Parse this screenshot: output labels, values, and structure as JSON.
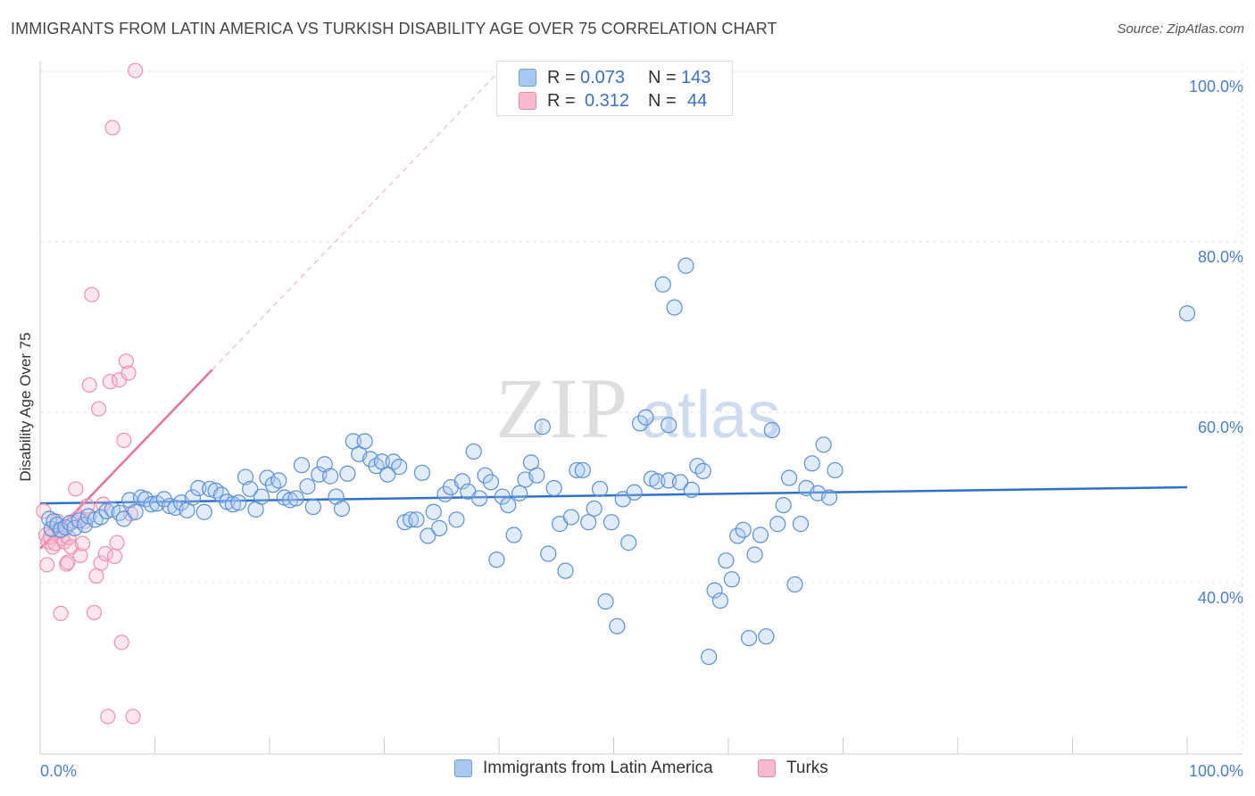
{
  "title": "IMMIGRANTS FROM LATIN AMERICA VS TURKISH DISABILITY AGE OVER 75 CORRELATION CHART",
  "source": "Source: ZipAtlas.com",
  "watermark": {
    "zip": "ZIP",
    "atlas": "atlas"
  },
  "stats": [
    {
      "r_label": "R =",
      "r_value": "0.073",
      "n_label": "N =",
      "n_value": "143",
      "color": "#a9c8f0",
      "border": "#6f9fe0"
    },
    {
      "r_label": "R =",
      "r_value": "0.312",
      "n_label": "N =",
      "n_value": "44",
      "color": "#f7b9cc",
      "border": "#e88aa8"
    }
  ],
  "legend": [
    {
      "label": "Immigrants from Latin America",
      "color": "#a9c8f0",
      "border": "#6f9fe0"
    },
    {
      "label": "Turks",
      "color": "#f7b9cc",
      "border": "#e88aa8"
    }
  ],
  "colors": {
    "blue": "#5b8fd9",
    "blue_line": "#2f6fc9",
    "pink": "#ef8fb0",
    "pink_line": "#e8729a",
    "axis_text": "#4a7fd0",
    "grid": "#e2e2e2"
  },
  "chart_data": {
    "type": "scatter",
    "xlabel": "",
    "ylabel": "Disability Age Over 75",
    "xlim": [
      0,
      100
    ],
    "ylim": [
      20,
      102
    ],
    "x_tick_labels": [
      "0.0%",
      "100.0%"
    ],
    "y_ticks": [
      {
        "value": 40,
        "label": "40.0%"
      },
      {
        "value": 60,
        "label": "60.0%"
      },
      {
        "value": 80,
        "label": "80.0%"
      },
      {
        "value": 100,
        "label": "100.0%"
      }
    ],
    "grid": true,
    "series": [
      {
        "name": "Immigrants from Latin America",
        "trend": {
          "x": [
            0,
            100
          ],
          "y": [
            49.3,
            51.2
          ]
        },
        "points": [
          [
            0.8,
            47.5
          ],
          [
            1,
            46.3
          ],
          [
            1.2,
            47.2
          ],
          [
            1.5,
            46.8
          ],
          [
            1.8,
            46.2
          ],
          [
            2.2,
            46.5
          ],
          [
            2.6,
            47
          ],
          [
            3,
            46.4
          ],
          [
            3.4,
            47.3
          ],
          [
            3.9,
            46.8
          ],
          [
            4.2,
            47.8
          ],
          [
            4.8,
            47.4
          ],
          [
            5.3,
            47.7
          ],
          [
            5.8,
            48.4
          ],
          [
            6.3,
            48.6
          ],
          [
            6.9,
            48.2
          ],
          [
            7.3,
            47.5
          ],
          [
            7.8,
            49.7
          ],
          [
            8.3,
            48.3
          ],
          [
            8.8,
            50
          ],
          [
            9.2,
            49.8
          ],
          [
            9.7,
            49.2
          ],
          [
            10.2,
            49.3
          ],
          [
            10.8,
            49.8
          ],
          [
            11.3,
            49
          ],
          [
            11.8,
            48.8
          ],
          [
            12.3,
            49.4
          ],
          [
            12.8,
            48.5
          ],
          [
            13.3,
            50
          ],
          [
            13.8,
            51.1
          ],
          [
            14.3,
            48.3
          ],
          [
            14.8,
            51
          ],
          [
            15.3,
            50.8
          ],
          [
            15.8,
            50.3
          ],
          [
            16.3,
            49.5
          ],
          [
            16.8,
            49.2
          ],
          [
            17.3,
            49.4
          ],
          [
            17.9,
            52.4
          ],
          [
            18.3,
            51
          ],
          [
            18.8,
            48.6
          ],
          [
            19.3,
            50.1
          ],
          [
            19.8,
            52.3
          ],
          [
            20.3,
            51.5
          ],
          [
            20.8,
            52
          ],
          [
            21.3,
            50
          ],
          [
            21.8,
            49.7
          ],
          [
            22.3,
            49.9
          ],
          [
            22.8,
            53.8
          ],
          [
            23.3,
            51.3
          ],
          [
            23.8,
            48.9
          ],
          [
            24.3,
            52.7
          ],
          [
            24.8,
            53.9
          ],
          [
            25.3,
            52.5
          ],
          [
            25.8,
            50.1
          ],
          [
            26.3,
            48.7
          ],
          [
            26.8,
            52.8
          ],
          [
            27.3,
            56.6
          ],
          [
            27.8,
            55.1
          ],
          [
            28.3,
            56.6
          ],
          [
            28.8,
            54.5
          ],
          [
            29.3,
            53.7
          ],
          [
            29.8,
            54.2
          ],
          [
            30.3,
            52.7
          ],
          [
            30.8,
            54.2
          ],
          [
            31.3,
            53.6
          ],
          [
            31.8,
            47.1
          ],
          [
            32.3,
            47.4
          ],
          [
            32.8,
            47.4
          ],
          [
            33.3,
            52.9
          ],
          [
            33.8,
            45.5
          ],
          [
            34.3,
            48.3
          ],
          [
            34.8,
            46.4
          ],
          [
            35.3,
            50.4
          ],
          [
            35.8,
            51.2
          ],
          [
            36.3,
            47.4
          ],
          [
            36.8,
            51.9
          ],
          [
            37.3,
            50.7
          ],
          [
            37.8,
            55.4
          ],
          [
            38.3,
            49.9
          ],
          [
            38.8,
            52.6
          ],
          [
            39.3,
            51.8
          ],
          [
            39.8,
            42.7
          ],
          [
            40.3,
            50.1
          ],
          [
            40.8,
            49.1
          ],
          [
            41.3,
            45.6
          ],
          [
            41.8,
            50.5
          ],
          [
            42.3,
            52.1
          ],
          [
            42.8,
            54.1
          ],
          [
            43.3,
            52.6
          ],
          [
            43.8,
            58.3
          ],
          [
            44.3,
            43.4
          ],
          [
            44.8,
            51.1
          ],
          [
            45.3,
            46.9
          ],
          [
            45.8,
            41.4
          ],
          [
            46.3,
            47.7
          ],
          [
            46.8,
            53.2
          ],
          [
            47.3,
            53.2
          ],
          [
            47.8,
            47.1
          ],
          [
            48.3,
            48.7
          ],
          [
            48.8,
            51
          ],
          [
            49.3,
            37.8
          ],
          [
            49.8,
            47.1
          ],
          [
            50.3,
            34.9
          ],
          [
            50.8,
            49.8
          ],
          [
            51.3,
            44.7
          ],
          [
            51.8,
            50.6
          ],
          [
            52.3,
            58.7
          ],
          [
            52.8,
            59.4
          ],
          [
            53.3,
            52.2
          ],
          [
            53.8,
            51.9
          ],
          [
            54.3,
            75
          ],
          [
            54.8,
            52
          ],
          [
            55.3,
            72.3
          ],
          [
            55.8,
            51.8
          ],
          [
            56.3,
            77.2
          ],
          [
            56.8,
            50.9
          ],
          [
            57.3,
            53.7
          ],
          [
            57.8,
            53.1
          ],
          [
            58.3,
            31.3
          ],
          [
            58.8,
            39.1
          ],
          [
            59.3,
            37.9
          ],
          [
            59.8,
            42.6
          ],
          [
            60.3,
            40.4
          ],
          [
            60.8,
            45.5
          ],
          [
            61.3,
            46.2
          ],
          [
            61.8,
            33.5
          ],
          [
            62.3,
            43.3
          ],
          [
            62.8,
            45.6
          ],
          [
            63.3,
            33.7
          ],
          [
            63.8,
            57.9
          ],
          [
            64.3,
            46.9
          ],
          [
            64.8,
            49.1
          ],
          [
            65.3,
            52.3
          ],
          [
            65.8,
            39.8
          ],
          [
            66.3,
            46.9
          ],
          [
            66.8,
            51.1
          ],
          [
            67.3,
            54
          ],
          [
            67.8,
            50.5
          ],
          [
            68.3,
            56.2
          ],
          [
            68.8,
            50
          ],
          [
            69.3,
            53.2
          ],
          [
            100,
            71.6
          ],
          [
            54.8,
            58.5
          ]
        ]
      },
      {
        "name": "Turks",
        "trend": {
          "x": [
            0,
            15
          ],
          "y": [
            44,
            65
          ]
        },
        "trend_extension": {
          "x": [
            15,
            40
          ],
          "y": [
            65,
            100
          ]
        },
        "points": [
          [
            0.3,
            48.4
          ],
          [
            0.5,
            45.6
          ],
          [
            0.7,
            44.8
          ],
          [
            0.9,
            45.4
          ],
          [
            1.1,
            44.2
          ],
          [
            1.3,
            44.6
          ],
          [
            1.5,
            47.2
          ],
          [
            1.7,
            46
          ],
          [
            1.9,
            45.2
          ],
          [
            2.1,
            44.8
          ],
          [
            2.3,
            42.2
          ],
          [
            2.5,
            45.3
          ],
          [
            2.7,
            44.2
          ],
          [
            2.9,
            47.2
          ],
          [
            3.1,
            51
          ],
          [
            3.3,
            47.6
          ],
          [
            3.5,
            43.2
          ],
          [
            3.7,
            44.6
          ],
          [
            3.9,
            47.2
          ],
          [
            4.1,
            49
          ],
          [
            4.3,
            63.2
          ],
          [
            4.5,
            73.8
          ],
          [
            4.7,
            36.5
          ],
          [
            4.9,
            40.8
          ],
          [
            5.1,
            60.4
          ],
          [
            5.3,
            42.3
          ],
          [
            5.5,
            49.2
          ],
          [
            5.7,
            43.4
          ],
          [
            5.9,
            24.3
          ],
          [
            6.1,
            63.6
          ],
          [
            6.3,
            93.4
          ],
          [
            6.5,
            43.1
          ],
          [
            6.7,
            44.7
          ],
          [
            6.9,
            63.8
          ],
          [
            7.1,
            33
          ],
          [
            7.3,
            56.7
          ],
          [
            7.5,
            66
          ],
          [
            7.7,
            64.6
          ],
          [
            7.9,
            48.1
          ],
          [
            8.1,
            24.3
          ],
          [
            8.3,
            100.1
          ],
          [
            0.6,
            42.1
          ],
          [
            1.8,
            36.4
          ],
          [
            2.4,
            42.4
          ]
        ]
      }
    ]
  }
}
